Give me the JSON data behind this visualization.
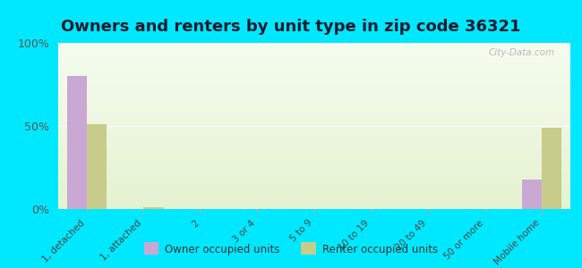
{
  "title": "Owners and renters by unit type in zip code 36321",
  "categories": [
    "1, detached",
    "1, attached",
    "2",
    "3 or 4",
    "5 to 9",
    "10 to 19",
    "20 to 49",
    "50 or more",
    "Mobile home"
  ],
  "owner_values": [
    80,
    0,
    0,
    0,
    0,
    0,
    0,
    0,
    18
  ],
  "renter_values": [
    51,
    1,
    0,
    0,
    0,
    0,
    0,
    0,
    49
  ],
  "owner_color": "#c9a8d4",
  "renter_color": "#c8cc8a",
  "background_color": "#00e8ff",
  "ylim": [
    0,
    100
  ],
  "yticks": [
    0,
    50,
    100
  ],
  "ytick_labels": [
    "0%",
    "50%",
    "100%"
  ],
  "bar_width": 0.35,
  "legend_owner": "Owner occupied units",
  "legend_renter": "Renter occupied units",
  "title_fontsize": 13,
  "watermark": "City-Data.com"
}
